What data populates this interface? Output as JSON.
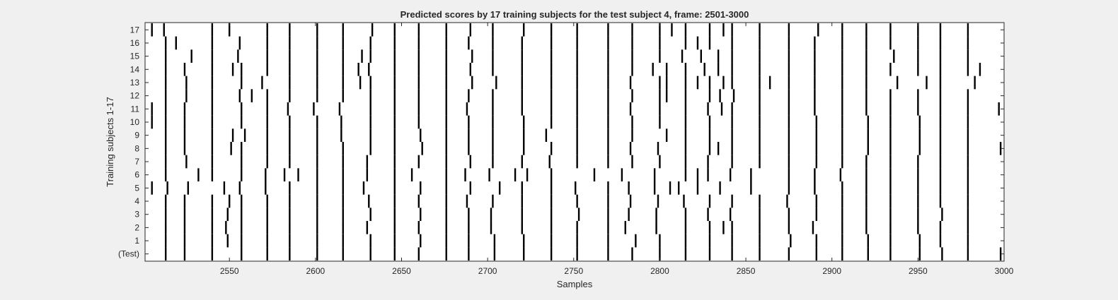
{
  "chart_data": {
    "type": "raster",
    "title": "Predicted scores by 17 training subjects for the test subject 4, frame: 2501-3000",
    "xlabel": "Samples",
    "ylabel": "Training subjects 1-17",
    "xlim": [
      2501,
      3000
    ],
    "xticks": [
      2550,
      2600,
      2650,
      2700,
      2750,
      2800,
      2850,
      2900,
      2950,
      3000
    ],
    "ytick_labels": [
      "(Test)",
      "1",
      "2",
      "3",
      "4",
      "5",
      "6",
      "7",
      "8",
      "9",
      "10",
      "11",
      "12",
      "13",
      "14",
      "15",
      "16",
      "17"
    ],
    "grid": false,
    "rows": [
      {
        "label": "(Test)",
        "events": [
          2513,
          2524,
          2540,
          2557,
          2572,
          2585,
          2601,
          2616,
          2632,
          2646,
          2660,
          2676,
          2689,
          2704,
          2721,
          2737,
          2752,
          2770,
          2784,
          2800,
          2815,
          2829,
          2842,
          2858,
          2875,
          2891,
          2906,
          2921,
          2934,
          2951,
          2964,
          2979,
          2998
        ]
      },
      {
        "label": "1",
        "events": [
          2513,
          2524,
          2540,
          2549,
          2557,
          2572,
          2585,
          2601,
          2616,
          2632,
          2646,
          2661,
          2676,
          2689,
          2704,
          2721,
          2737,
          2752,
          2770,
          2786,
          2800,
          2815,
          2829,
          2842,
          2858,
          2876,
          2891,
          2906,
          2921,
          2934,
          2951,
          2963,
          2979
        ]
      },
      {
        "label": "2",
        "events": [
          2513,
          2524,
          2540,
          2548,
          2557,
          2572,
          2585,
          2601,
          2616,
          2630,
          2646,
          2660,
          2676,
          2689,
          2702,
          2720,
          2737,
          2752,
          2770,
          2780,
          2798,
          2815,
          2829,
          2837,
          2842,
          2858,
          2875,
          2889,
          2906,
          2920,
          2934,
          2950,
          2963,
          2979
        ]
      },
      {
        "label": "3",
        "events": [
          2513,
          2524,
          2540,
          2549,
          2557,
          2572,
          2585,
          2601,
          2616,
          2632,
          2646,
          2661,
          2676,
          2689,
          2702,
          2720,
          2737,
          2753,
          2770,
          2782,
          2798,
          2815,
          2828,
          2841,
          2858,
          2875,
          2891,
          2906,
          2920,
          2934,
          2950,
          2964,
          2979
        ]
      },
      {
        "label": "4",
        "events": [
          2513,
          2524,
          2540,
          2550,
          2557,
          2572,
          2585,
          2601,
          2616,
          2631,
          2646,
          2660,
          2676,
          2688,
          2703,
          2720,
          2737,
          2752,
          2770,
          2783,
          2799,
          2814,
          2829,
          2842,
          2858,
          2874,
          2891,
          2906,
          2920,
          2934,
          2950,
          2963,
          2979
        ]
      },
      {
        "label": "5",
        "events": [
          2505,
          2514,
          2526,
          2547,
          2556,
          2571,
          2585,
          2601,
          2616,
          2628,
          2646,
          2661,
          2676,
          2690,
          2707,
          2720,
          2737,
          2751,
          2770,
          2782,
          2797,
          2806,
          2811,
          2822,
          2835,
          2853,
          2875,
          2890,
          2906,
          2920,
          2934,
          2950,
          2963,
          2979
        ]
      },
      {
        "label": "6",
        "events": [
          2513,
          2532,
          2540,
          2557,
          2571,
          2582,
          2590,
          2601,
          2616,
          2630,
          2646,
          2656,
          2676,
          2687,
          2701,
          2716,
          2723,
          2737,
          2762,
          2778,
          2797,
          2815,
          2822,
          2828,
          2841,
          2853,
          2875,
          2890,
          2905,
          2920,
          2934,
          2950,
          2963,
          2979
        ]
      },
      {
        "label": "7",
        "events": [
          2513,
          2525,
          2540,
          2557,
          2572,
          2585,
          2601,
          2616,
          2630,
          2646,
          2660,
          2676,
          2690,
          2703,
          2720,
          2736,
          2752,
          2770,
          2784,
          2800,
          2815,
          2828,
          2842,
          2858,
          2875,
          2891,
          2906,
          2920,
          2934,
          2950,
          2963,
          2979
        ]
      },
      {
        "label": "8",
        "events": [
          2513,
          2524,
          2540,
          2551,
          2557,
          2572,
          2585,
          2601,
          2616,
          2632,
          2646,
          2662,
          2676,
          2689,
          2703,
          2721,
          2737,
          2752,
          2770,
          2783,
          2799,
          2815,
          2829,
          2834,
          2842,
          2858,
          2875,
          2891,
          2906,
          2921,
          2934,
          2951,
          2963,
          2979,
          2998
        ]
      },
      {
        "label": "9",
        "events": [
          2513,
          2524,
          2540,
          2552,
          2559,
          2572,
          2585,
          2601,
          2615,
          2632,
          2646,
          2661,
          2676,
          2689,
          2703,
          2721,
          2734,
          2752,
          2770,
          2784,
          2804,
          2815,
          2829,
          2842,
          2858,
          2875,
          2891,
          2906,
          2921,
          2934,
          2951,
          2963,
          2979
        ]
      },
      {
        "label": "10",
        "events": [
          2505,
          2513,
          2524,
          2540,
          2557,
          2572,
          2585,
          2601,
          2615,
          2632,
          2646,
          2660,
          2676,
          2689,
          2703,
          2721,
          2737,
          2752,
          2770,
          2784,
          2800,
          2815,
          2829,
          2842,
          2858,
          2875,
          2891,
          2906,
          2921,
          2934,
          2951,
          2963,
          2979
        ]
      },
      {
        "label": "11",
        "events": [
          2505,
          2513,
          2524,
          2540,
          2557,
          2572,
          2584,
          2599,
          2614,
          2632,
          2646,
          2660,
          2676,
          2688,
          2703,
          2720,
          2737,
          2752,
          2770,
          2783,
          2800,
          2815,
          2828,
          2836,
          2842,
          2858,
          2875,
          2890,
          2906,
          2920,
          2934,
          2950,
          2963,
          2979,
          2997
        ]
      },
      {
        "label": "12",
        "events": [
          2513,
          2525,
          2540,
          2556,
          2563,
          2572,
          2585,
          2601,
          2616,
          2632,
          2646,
          2660,
          2676,
          2689,
          2703,
          2720,
          2737,
          2752,
          2770,
          2784,
          2800,
          2804,
          2815,
          2829,
          2835,
          2843,
          2858,
          2875,
          2890,
          2906,
          2920,
          2934,
          2950,
          2963,
          2979
        ]
      },
      {
        "label": "13",
        "events": [
          2513,
          2525,
          2540,
          2557,
          2569,
          2585,
          2601,
          2616,
          2626,
          2632,
          2646,
          2660,
          2676,
          2691,
          2705,
          2720,
          2737,
          2752,
          2770,
          2783,
          2800,
          2804,
          2815,
          2822,
          2829,
          2837,
          2842,
          2858,
          2864,
          2875,
          2890,
          2906,
          2920,
          2938,
          2955,
          2963,
          2983
        ]
      },
      {
        "label": "14",
        "events": [
          2513,
          2524,
          2540,
          2552,
          2557,
          2572,
          2585,
          2601,
          2616,
          2625,
          2631,
          2646,
          2660,
          2676,
          2690,
          2703,
          2720,
          2737,
          2752,
          2770,
          2784,
          2796,
          2804,
          2815,
          2826,
          2834,
          2842,
          2858,
          2875,
          2890,
          2906,
          2920,
          2934,
          2950,
          2963,
          2979,
          2986
        ]
      },
      {
        "label": "15",
        "events": [
          2513,
          2528,
          2540,
          2555,
          2572,
          2585,
          2601,
          2616,
          2627,
          2632,
          2646,
          2660,
          2676,
          2691,
          2703,
          2720,
          2737,
          2752,
          2770,
          2784,
          2800,
          2813,
          2824,
          2834,
          2842,
          2858,
          2875,
          2890,
          2906,
          2920,
          2936,
          2950,
          2963,
          2979
        ]
      },
      {
        "label": "16",
        "events": [
          2513,
          2519,
          2540,
          2556,
          2572,
          2585,
          2601,
          2616,
          2632,
          2646,
          2660,
          2676,
          2689,
          2703,
          2720,
          2737,
          2752,
          2770,
          2784,
          2800,
          2815,
          2822,
          2829,
          2842,
          2858,
          2875,
          2890,
          2906,
          2920,
          2934,
          2950,
          2963,
          2979
        ]
      },
      {
        "label": "17",
        "events": [
          2505,
          2512,
          2540,
          2550,
          2572,
          2585,
          2601,
          2616,
          2633,
          2646,
          2660,
          2676,
          2690,
          2703,
          2721,
          2737,
          2752,
          2770,
          2784,
          2800,
          2807,
          2815,
          2829,
          2837,
          2842,
          2858,
          2875,
          2892,
          2906,
          2920,
          2934,
          2950,
          2963,
          2979
        ]
      }
    ]
  }
}
